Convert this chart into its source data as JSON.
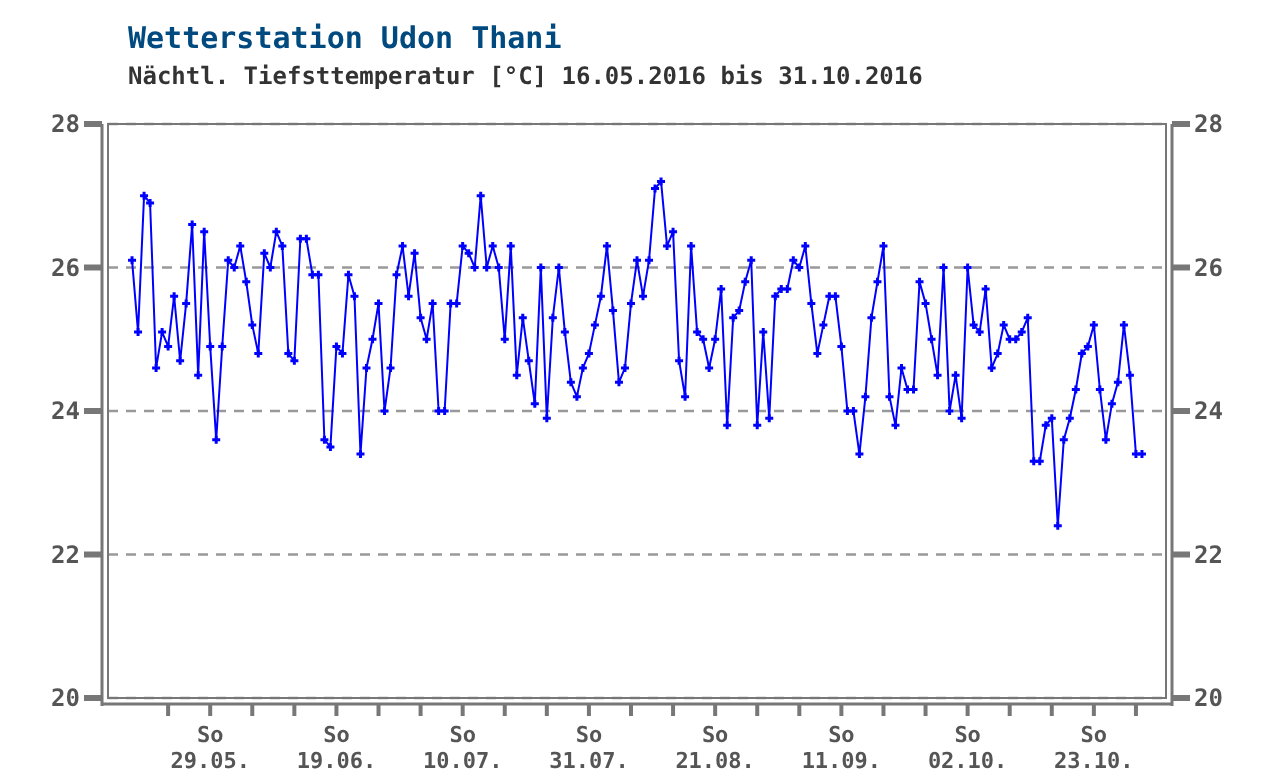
{
  "chart_data": {
    "type": "line",
    "title": "Wetterstation Udon Thani",
    "subtitle": "Nächtl. Tiefsttemperatur [°C] 16.05.2016 bis 31.10.2016",
    "xlim": [
      "2016-05-12",
      "2016-11-04"
    ],
    "xticks": [
      {
        "value": "2016-05-22",
        "label": null
      },
      {
        "value": "2016-05-29",
        "label": "So 29.05."
      },
      {
        "value": "2016-06-05",
        "label": null
      },
      {
        "value": "2016-06-12",
        "label": null
      },
      {
        "value": "2016-06-19",
        "label": "So 19.06."
      },
      {
        "value": "2016-06-26",
        "label": null
      },
      {
        "value": "2016-07-03",
        "label": null
      },
      {
        "value": "2016-07-10",
        "label": "So 10.07."
      },
      {
        "value": "2016-07-17",
        "label": null
      },
      {
        "value": "2016-07-24",
        "label": null
      },
      {
        "value": "2016-07-31",
        "label": "So 31.07."
      },
      {
        "value": "2016-08-07",
        "label": null
      },
      {
        "value": "2016-08-14",
        "label": null
      },
      {
        "value": "2016-08-21",
        "label": "So 21.08."
      },
      {
        "value": "2016-08-28",
        "label": null
      },
      {
        "value": "2016-09-04",
        "label": null
      },
      {
        "value": "2016-09-11",
        "label": "So 11.09."
      },
      {
        "value": "2016-09-18",
        "label": null
      },
      {
        "value": "2016-09-25",
        "label": null
      },
      {
        "value": "2016-10-02",
        "label": "So 02.10."
      },
      {
        "value": "2016-10-09",
        "label": null
      },
      {
        "value": "2016-10-16",
        "label": null
      },
      {
        "value": "2016-10-23",
        "label": "So 23.10."
      },
      {
        "value": "2016-10-30",
        "label": null
      }
    ],
    "ylim": [
      20,
      28
    ],
    "yticks": [
      20,
      22,
      24,
      26,
      28
    ],
    "y2lim": [
      20,
      28
    ],
    "y2ticks": [
      20,
      22,
      24,
      26,
      28
    ],
    "grid": "y",
    "marker": "cross",
    "line_style": "solid",
    "x": [
      "2016-05-16",
      "2016-05-17",
      "2016-05-18",
      "2016-05-19",
      "2016-05-20",
      "2016-05-21",
      "2016-05-22",
      "2016-05-23",
      "2016-05-24",
      "2016-05-25",
      "2016-05-26",
      "2016-05-27",
      "2016-05-28",
      "2016-05-29",
      "2016-05-30",
      "2016-05-31",
      "2016-06-01",
      "2016-06-02",
      "2016-06-03",
      "2016-06-04",
      "2016-06-05",
      "2016-06-06",
      "2016-06-07",
      "2016-06-08",
      "2016-06-09",
      "2016-06-10",
      "2016-06-11",
      "2016-06-12",
      "2016-06-13",
      "2016-06-14",
      "2016-06-15",
      "2016-06-16",
      "2016-06-17",
      "2016-06-18",
      "2016-06-19",
      "2016-06-20",
      "2016-06-21",
      "2016-06-22",
      "2016-06-23",
      "2016-06-24",
      "2016-06-25",
      "2016-06-26",
      "2016-06-27",
      "2016-06-28",
      "2016-06-29",
      "2016-06-30",
      "2016-07-01",
      "2016-07-02",
      "2016-07-03",
      "2016-07-04",
      "2016-07-05",
      "2016-07-06",
      "2016-07-07",
      "2016-07-08",
      "2016-07-09",
      "2016-07-10",
      "2016-07-11",
      "2016-07-12",
      "2016-07-13",
      "2016-07-14",
      "2016-07-15",
      "2016-07-16",
      "2016-07-17",
      "2016-07-18",
      "2016-07-19",
      "2016-07-20",
      "2016-07-21",
      "2016-07-22",
      "2016-07-23",
      "2016-07-24",
      "2016-07-25",
      "2016-07-26",
      "2016-07-27",
      "2016-07-28",
      "2016-07-29",
      "2016-07-30",
      "2016-07-31",
      "2016-08-01",
      "2016-08-02",
      "2016-08-03",
      "2016-08-04",
      "2016-08-05",
      "2016-08-06",
      "2016-08-07",
      "2016-08-08",
      "2016-08-09",
      "2016-08-10",
      "2016-08-11",
      "2016-08-12",
      "2016-08-13",
      "2016-08-14",
      "2016-08-15",
      "2016-08-16",
      "2016-08-17",
      "2016-08-18",
      "2016-08-19",
      "2016-08-20",
      "2016-08-21",
      "2016-08-22",
      "2016-08-23",
      "2016-08-24",
      "2016-08-25",
      "2016-08-26",
      "2016-08-27",
      "2016-08-28",
      "2016-08-29",
      "2016-08-30",
      "2016-08-31",
      "2016-09-01",
      "2016-09-02",
      "2016-09-03",
      "2016-09-04",
      "2016-09-05",
      "2016-09-06",
      "2016-09-07",
      "2016-09-08",
      "2016-09-09",
      "2016-09-10",
      "2016-09-11",
      "2016-09-12",
      "2016-09-13",
      "2016-09-14",
      "2016-09-15",
      "2016-09-16",
      "2016-09-17",
      "2016-09-18",
      "2016-09-19",
      "2016-09-20",
      "2016-09-21",
      "2016-09-22",
      "2016-09-23",
      "2016-09-24",
      "2016-09-25",
      "2016-09-26",
      "2016-09-27",
      "2016-09-28",
      "2016-09-29",
      "2016-09-30",
      "2016-10-01",
      "2016-10-02",
      "2016-10-03",
      "2016-10-04",
      "2016-10-05",
      "2016-10-06",
      "2016-10-07",
      "2016-10-08",
      "2016-10-09",
      "2016-10-10",
      "2016-10-11",
      "2016-10-12",
      "2016-10-13",
      "2016-10-14",
      "2016-10-15",
      "2016-10-16",
      "2016-10-17",
      "2016-10-18",
      "2016-10-19",
      "2016-10-20",
      "2016-10-21",
      "2016-10-22",
      "2016-10-23",
      "2016-10-24",
      "2016-10-25",
      "2016-10-26",
      "2016-10-27",
      "2016-10-28",
      "2016-10-29",
      "2016-10-30",
      "2016-10-31"
    ],
    "series": [
      {
        "color": "#0000ff",
        "values": [
          26.1,
          25.1,
          27.0,
          26.9,
          24.6,
          25.1,
          24.9,
          25.6,
          24.7,
          25.5,
          26.6,
          24.5,
          26.5,
          24.9,
          23.6,
          24.9,
          26.1,
          26.0,
          26.3,
          25.8,
          25.2,
          24.8,
          26.2,
          26.0,
          26.5,
          26.3,
          24.8,
          24.7,
          26.4,
          26.4,
          25.9,
          25.9,
          23.6,
          23.5,
          24.9,
          24.8,
          25.9,
          25.6,
          23.4,
          24.6,
          25.0,
          25.5,
          24.0,
          24.6,
          25.9,
          26.3,
          25.6,
          26.2,
          25.3,
          25.0,
          25.5,
          24.0,
          24.0,
          25.5,
          25.5,
          26.3,
          26.2,
          26.0,
          27.0,
          26.0,
          26.3,
          26.0,
          25.0,
          26.3,
          24.5,
          25.3,
          24.7,
          24.1,
          26.0,
          23.9,
          25.3,
          26.0,
          25.1,
          24.4,
          24.2,
          24.6,
          24.8,
          25.2,
          25.6,
          26.3,
          25.4,
          24.4,
          24.6,
          25.5,
          26.1,
          25.6,
          26.1,
          27.1,
          27.2,
          26.3,
          26.5,
          24.7,
          24.2,
          26.3,
          25.1,
          25.0,
          24.6,
          25.0,
          25.7,
          23.8,
          25.3,
          25.4,
          25.8,
          26.1,
          23.8,
          25.1,
          23.9,
          25.6,
          25.7,
          25.7,
          26.1,
          26.0,
          26.3,
          25.5,
          24.8,
          25.2,
          25.6,
          25.6,
          24.9,
          24.0,
          24.0,
          23.4,
          24.2,
          25.3,
          25.8,
          26.3,
          24.2,
          23.8,
          24.6,
          24.3,
          24.3,
          25.8,
          25.5,
          25.0,
          24.5,
          26.0,
          24.0,
          24.5,
          23.9,
          26.0,
          25.2,
          25.1,
          25.7,
          24.6,
          24.8,
          25.2,
          25.0,
          25.0,
          25.1,
          25.3,
          23.3,
          23.3,
          23.8,
          23.9,
          22.4,
          23.6,
          23.9,
          24.3,
          24.8,
          24.9,
          25.2,
          24.3,
          23.6,
          24.1,
          24.4,
          25.2,
          24.5,
          23.4,
          23.4
        ]
      }
    ]
  }
}
